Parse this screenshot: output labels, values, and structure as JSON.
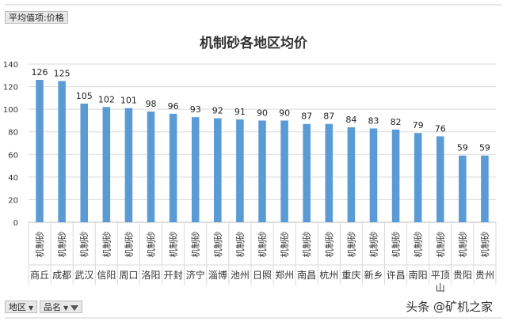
{
  "pivot": {
    "value_field": "平均值项:价格",
    "row_field": "地区",
    "row_field_2": "品名"
  },
  "watermark": "头条 @矿机之家",
  "colors": {
    "bar": "#5b9bd5",
    "grid": "#d9d9d9",
    "axis": "#bfbfbf",
    "text": "#333333"
  },
  "chart_data": {
    "type": "bar",
    "title": "机制砂各地区均价",
    "xlabel": "",
    "ylabel": "",
    "ylim": [
      0,
      140
    ],
    "yticks": [
      0,
      20,
      40,
      60,
      80,
      100,
      120,
      140
    ],
    "grid": true,
    "legend": "none",
    "product": "机制砂",
    "categories": [
      "商丘",
      "成都",
      "武汉",
      "信阳",
      "周口",
      "洛阳",
      "开封",
      "济宁",
      "淄博",
      "池州",
      "日照",
      "郑州",
      "南昌",
      "杭州",
      "重庆",
      "新乡",
      "许昌",
      "南阳",
      "平顶山",
      "贵阳",
      "贵州"
    ],
    "values": [
      126,
      125,
      105,
      102,
      101,
      98,
      96,
      93,
      92,
      91,
      90,
      90,
      87,
      87,
      84,
      83,
      82,
      79,
      76,
      59,
      59
    ]
  }
}
